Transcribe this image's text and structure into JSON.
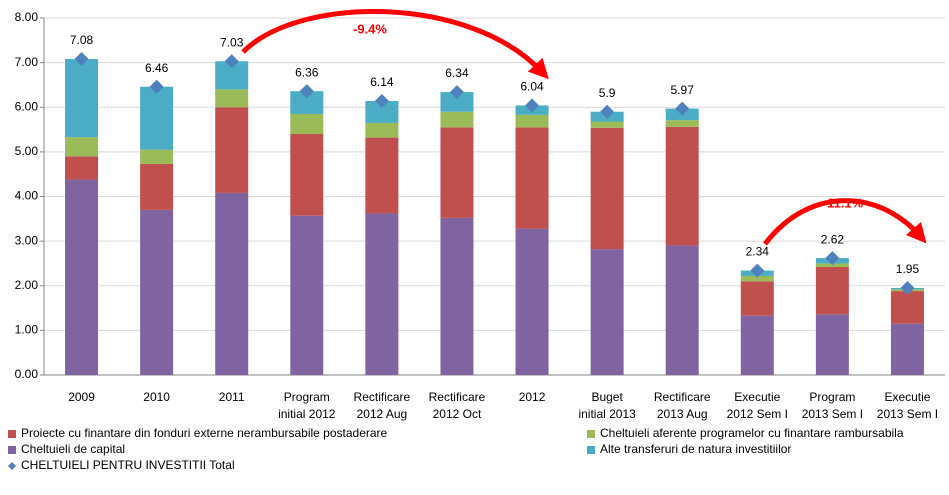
{
  "chart_data": {
    "type": "stacked_bar",
    "categories": [
      "2009",
      "2010",
      "2011",
      "Program\ninitial 2012",
      "Rectificare\n2012 Aug",
      "Rectificare\n2012 Oct",
      "2012",
      "Buget\ninitial 2013",
      "Rectificare\n2013 Aug",
      "Executie\n2012 Sem I",
      "Program\n2013 Sem I",
      "Executie\n2013 Sem I"
    ],
    "series": [
      {
        "name": "Cheltuieli de capital",
        "color": "#8064a2",
        "values": [
          4.38,
          3.7,
          4.08,
          3.57,
          3.62,
          3.52,
          3.28,
          2.82,
          2.9,
          1.33,
          1.36,
          1.15
        ]
      },
      {
        "name": "Proiecte cu finantare din fonduri externe nerambursabile postaderare",
        "color": "#c0504d",
        "values": [
          0.52,
          1.03,
          1.92,
          1.83,
          1.7,
          2.03,
          2.27,
          2.72,
          2.66,
          0.77,
          1.06,
          0.73
        ]
      },
      {
        "name": "Cheltuieli aferente programelor cu finantare rambursabila",
        "color": "#9bbb59",
        "values": [
          0.43,
          0.32,
          0.4,
          0.45,
          0.33,
          0.35,
          0.28,
          0.14,
          0.15,
          0.12,
          0.08,
          0.04
        ]
      },
      {
        "name": "Alte transferuri de natura investitiilor",
        "color": "#4bacc6",
        "values": [
          1.75,
          1.41,
          0.63,
          0.51,
          0.49,
          0.44,
          0.21,
          0.22,
          0.26,
          0.12,
          0.12,
          0.03
        ]
      }
    ],
    "total": {
      "name": "CHELTUIELI  PENTRU  INVESTITII  Total",
      "color": "#4f81bd",
      "values": [
        7.08,
        6.46,
        7.03,
        6.36,
        6.14,
        6.34,
        6.04,
        5.9,
        5.97,
        2.34,
        2.62,
        1.95
      ]
    },
    "annotations": [
      "-9.4%",
      "-11.1%"
    ],
    "ylim": [
      0,
      8
    ],
    "yticks": [
      {
        "value": 0,
        "label": "0.00"
      },
      {
        "value": 1,
        "label": "1.00"
      },
      {
        "value": 2,
        "label": "2.00"
      },
      {
        "value": 3,
        "label": "3.00"
      },
      {
        "value": 4,
        "label": "4.00"
      },
      {
        "value": 5,
        "label": "5.00"
      },
      {
        "value": 6,
        "label": "6.00"
      },
      {
        "value": 7,
        "label": "7.00"
      },
      {
        "value": 8,
        "label": "8.00"
      }
    ],
    "grid": true
  }
}
